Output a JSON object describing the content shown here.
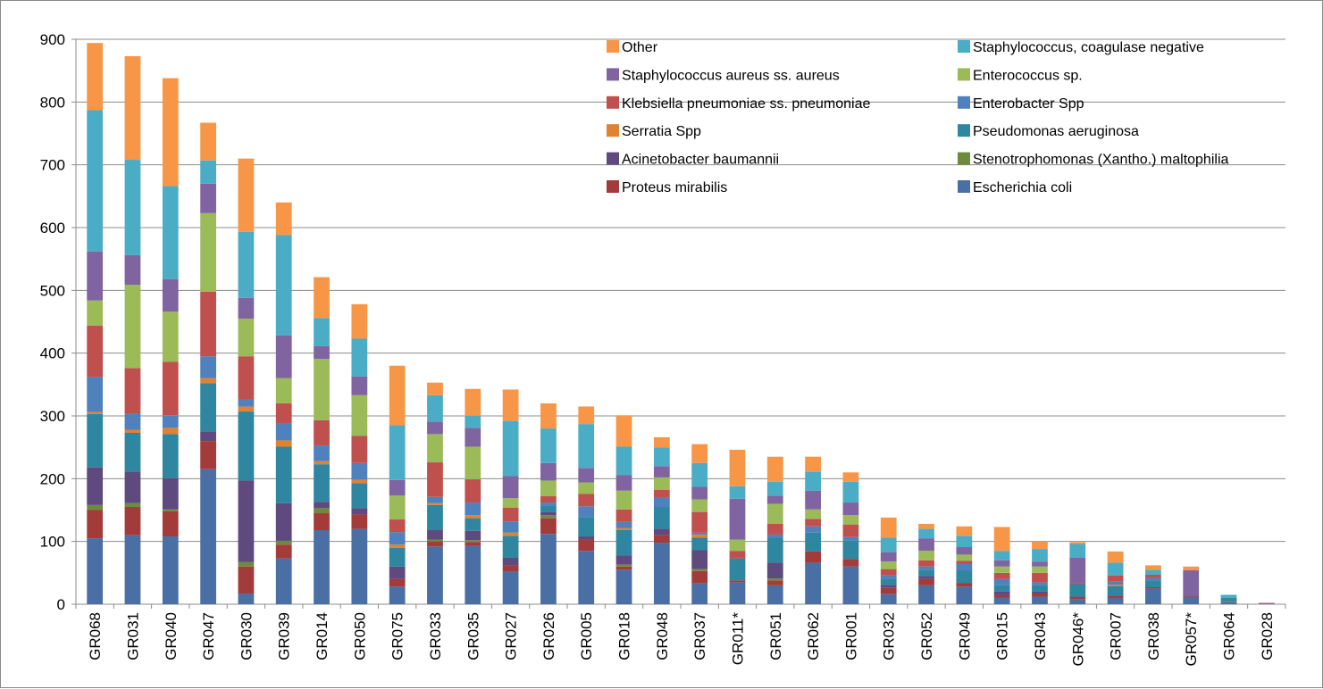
{
  "chart_data": {
    "type": "bar",
    "stacked": true,
    "title": "",
    "xlabel": "",
    "ylabel": "",
    "ylim": [
      0,
      900
    ],
    "yticks": [
      0,
      100,
      200,
      300,
      400,
      500,
      600,
      700,
      800,
      900
    ],
    "grid": true,
    "legend_position": "top-right",
    "categories": [
      "GR068",
      "GR031",
      "GR040",
      "GR047",
      "GR030",
      "GR039",
      "GR014",
      "GR050",
      "GR075",
      "GR033",
      "GR035",
      "GR027",
      "GR026",
      "GR005",
      "GR018",
      "GR048",
      "GR037",
      "GR011*",
      "GR051",
      "GR062",
      "GR001",
      "GR032",
      "GR052",
      "GR049",
      "GR015",
      "GR043",
      "GR046*",
      "GR007",
      "GR038",
      "GR057*",
      "GR064",
      "GR028"
    ],
    "series": [
      {
        "name": "Escherichia coli",
        "color": "#4A6FA5",
        "values": [
          105,
          110,
          108,
          215,
          17,
          73,
          118,
          120,
          28,
          92,
          93,
          52,
          112,
          85,
          55,
          98,
          33,
          35,
          30,
          66,
          60,
          16,
          30,
          28,
          10,
          12,
          8,
          10,
          25,
          12,
          4,
          1
        ]
      },
      {
        "name": "Proteus mirabilis",
        "color": "#A33B3B",
        "values": [
          45,
          45,
          40,
          45,
          43,
          22,
          27,
          23,
          12,
          8,
          6,
          10,
          25,
          18,
          5,
          12,
          20,
          3,
          8,
          18,
          12,
          10,
          10,
          6,
          5,
          5,
          2,
          4,
          2,
          2,
          0,
          1
        ]
      },
      {
        "name": "Stenotrophomonas (Xantho.) maltophilia",
        "color": "#6E8B3D",
        "values": [
          8,
          6,
          3,
          0,
          7,
          6,
          8,
          0,
          0,
          3,
          3,
          0,
          5,
          0,
          3,
          0,
          3,
          0,
          3,
          0,
          0,
          0,
          0,
          0,
          0,
          0,
          0,
          0,
          0,
          0,
          1,
          0
        ]
      },
      {
        "name": "Acinetobacter baumannii",
        "color": "#5E4A7E",
        "values": [
          60,
          50,
          50,
          15,
          130,
          60,
          10,
          10,
          20,
          15,
          15,
          12,
          5,
          5,
          15,
          10,
          30,
          0,
          25,
          0,
          0,
          5,
          5,
          0,
          5,
          3,
          2,
          0,
          0,
          0,
          0,
          0
        ]
      },
      {
        "name": "Pseudomonas aeruginosa",
        "color": "#2E86A0",
        "values": [
          85,
          62,
          70,
          77,
          110,
          90,
          60,
          40,
          30,
          40,
          20,
          35,
          10,
          30,
          40,
          35,
          20,
          35,
          40,
          30,
          30,
          10,
          10,
          20,
          10,
          10,
          20,
          15,
          10,
          0,
          5,
          0
        ]
      },
      {
        "name": "Serratia Spp",
        "color": "#E0822F",
        "values": [
          3,
          5,
          10,
          8,
          8,
          10,
          5,
          5,
          5,
          3,
          5,
          5,
          0,
          0,
          3,
          0,
          5,
          0,
          0,
          0,
          0,
          0,
          0,
          0,
          0,
          0,
          0,
          2,
          0,
          0,
          0,
          0
        ]
      },
      {
        "name": "Enterobacter Spp",
        "color": "#4F81BD",
        "values": [
          56,
          25,
          20,
          35,
          12,
          27,
          25,
          27,
          20,
          10,
          20,
          18,
          5,
          18,
          10,
          15,
          3,
          0,
          5,
          10,
          5,
          5,
          5,
          10,
          10,
          5,
          0,
          5,
          5,
          0,
          0,
          0
        ]
      },
      {
        "name": "Klebsiella pneumoniae ss. pneumoniae",
        "color": "#C0504D",
        "values": [
          82,
          73,
          85,
          103,
          68,
          32,
          40,
          43,
          20,
          55,
          37,
          22,
          10,
          20,
          20,
          12,
          33,
          12,
          17,
          12,
          20,
          10,
          10,
          5,
          10,
          15,
          2,
          10,
          5,
          0,
          0,
          0
        ]
      },
      {
        "name": "Enterococcus sp.",
        "color": "#9BBB59",
        "values": [
          40,
          133,
          80,
          125,
          60,
          40,
          98,
          65,
          38,
          45,
          52,
          15,
          25,
          18,
          30,
          20,
          20,
          18,
          32,
          15,
          15,
          12,
          15,
          10,
          10,
          10,
          0,
          0,
          0,
          0,
          0,
          0
        ]
      },
      {
        "name": "Staphylococcus aureus ss. aureus",
        "color": "#8064A2",
        "values": [
          78,
          47,
          52,
          47,
          33,
          68,
          20,
          30,
          25,
          20,
          30,
          35,
          28,
          23,
          25,
          18,
          20,
          65,
          13,
          30,
          20,
          15,
          20,
          12,
          10,
          8,
          40,
          0,
          0,
          40,
          0,
          0
        ]
      },
      {
        "name": "Staphylococcus, coagulase negative",
        "color": "#4BACC6",
        "values": [
          225,
          152,
          148,
          37,
          105,
          160,
          45,
          60,
          87,
          42,
          20,
          88,
          55,
          70,
          45,
          30,
          38,
          20,
          22,
          30,
          33,
          23,
          15,
          18,
          15,
          20,
          22,
          20,
          8,
          0,
          5,
          0
        ]
      },
      {
        "name": "Other",
        "color": "#F79646",
        "values": [
          107,
          165,
          172,
          60,
          117,
          52,
          65,
          55,
          95,
          20,
          42,
          50,
          40,
          28,
          50,
          16,
          30,
          58,
          40,
          24,
          15,
          32,
          8,
          15,
          38,
          12,
          3,
          18,
          7,
          6,
          0,
          0
        ]
      }
    ],
    "legend_order": [
      "Other",
      "Staphylococcus, coagulase negative",
      "Staphylococcus aureus ss. aureus",
      "Enterococcus sp.",
      "Klebsiella pneumoniae ss. pneumoniae",
      "Enterobacter Spp",
      "Serratia Spp",
      "Pseudomonas aeruginosa",
      "Acinetobacter baumannii",
      "Stenotrophomonas (Xantho.) maltophilia",
      "Proteus mirabilis",
      "Escherichia coli"
    ]
  }
}
